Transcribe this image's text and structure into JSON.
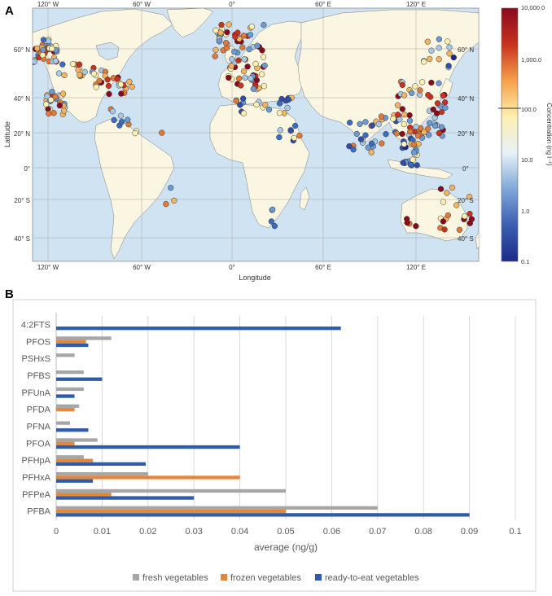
{
  "colors": {
    "ocean": "#cfe3f3",
    "land": "#faf6e1",
    "grid": "#a9a9a9",
    "fresh": "#a6a6a6",
    "frozen": "#e3873c",
    "ready": "#2e5ca8",
    "gridlineB": "#d9d9d9"
  },
  "panel_a": {
    "label": "A",
    "xlabel": "Longitude",
    "ylabel": "Latitude",
    "lon_ticks": [
      "120° W",
      "60° W",
      "0°",
      "60° E",
      "120° E"
    ],
    "lat_ticks_left": [
      "60° N",
      "40° N",
      "20° N",
      "0°",
      "20° S",
      "40° S"
    ],
    "lat_ticks_right": [
      "60° N",
      "40° N",
      "20° N",
      "0°",
      "20° S",
      "40° S"
    ],
    "colorbar": {
      "title": "Concentration (ng l⁻¹)",
      "tick_labels": [
        "10,000.0",
        "1,000.0",
        "100.0",
        "10.0",
        "1.0",
        "0.1"
      ],
      "stops": [
        "#1b2a8a",
        "#3b5fb0",
        "#7fa8d8",
        "#e8f1f8",
        "#fdf0b0",
        "#f5a04a",
        "#c8321f",
        "#8a0a1c"
      ]
    }
  },
  "chart_data": {
    "type": "bar",
    "orientation": "horizontal",
    "panel_label": "B",
    "categories": [
      "4:2FTS",
      "PFOS",
      "PSHxS",
      "PFBS",
      "PFUnA",
      "PFDA",
      "PFNA",
      "PFOA",
      "PFHpA",
      "PFHxA",
      "PFPeA",
      "PFBA"
    ],
    "series": [
      {
        "name": "fresh vegetables",
        "color": "#a6a6a6",
        "values": [
          0,
          0.012,
          0.004,
          0.006,
          0.006,
          0.005,
          0.003,
          0.009,
          0.006,
          0.02,
          0.05,
          0.07
        ]
      },
      {
        "name": "frozen vegetables",
        "color": "#e3873c",
        "values": [
          0,
          0.0065,
          0,
          0,
          0,
          0.004,
          0,
          0.004,
          0.008,
          0.04,
          0.012,
          0.05
        ]
      },
      {
        "name": "ready-to-eat vegetables",
        "color": "#2e5ca8",
        "values": [
          0.062,
          0.007,
          0,
          0.01,
          0.004,
          0,
          0.007,
          0.04,
          0.0195,
          0.008,
          0.03,
          0.09
        ]
      }
    ],
    "xlabel": "average (ng/g)",
    "xlim": [
      0,
      0.1
    ],
    "xticks": [
      0,
      0.01,
      0.02,
      0.03,
      0.04,
      0.05,
      0.06,
      0.07,
      0.08,
      0.09,
      0.1
    ],
    "xtick_labels": [
      "0",
      "0.01",
      "0.02",
      "0.03",
      "0.04",
      "0.05",
      "0.06",
      "0.07",
      "0.08",
      "0.09",
      "0.1"
    ],
    "legend_position": "bottom",
    "grid": true
  }
}
